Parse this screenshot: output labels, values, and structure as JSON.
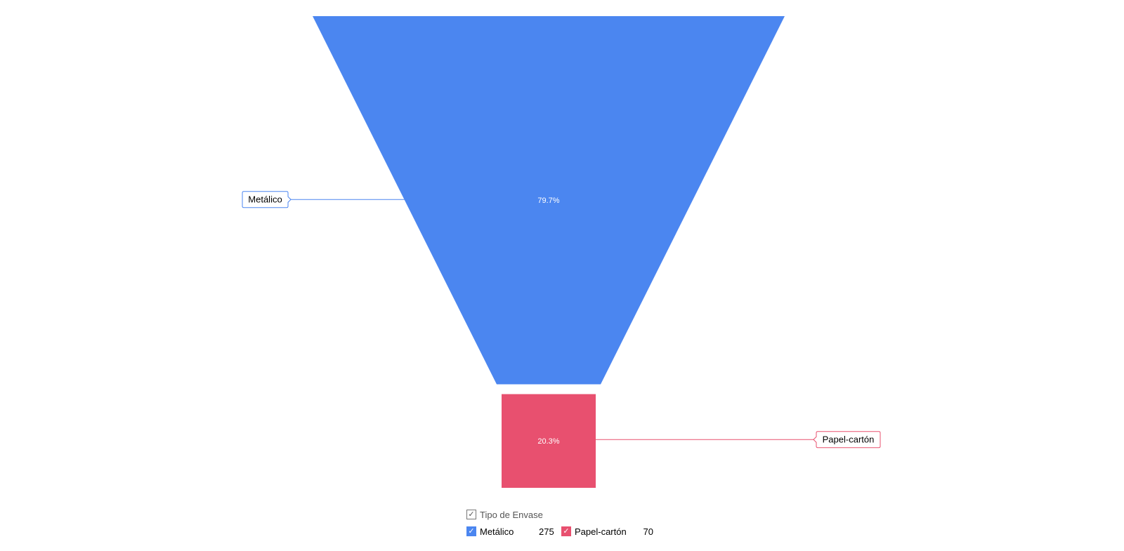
{
  "chart_data": {
    "type": "funnel",
    "title": "",
    "legend_title": "Tipo de Envase",
    "legend_position": "bottom",
    "categories": [
      "Metálico",
      "Papel-cartón"
    ],
    "values": [
      275,
      70
    ],
    "percent_labels": [
      "79.7%",
      "20.3%"
    ],
    "colors": [
      "#4b86f0",
      "#e8506f"
    ]
  }
}
